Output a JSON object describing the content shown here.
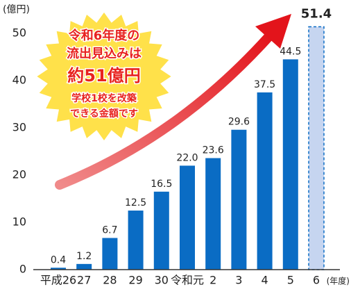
{
  "chart_data": {
    "type": "bar",
    "y_unit": "(億円)",
    "x_unit": "(年度)",
    "categories": [
      "平成26",
      "27",
      "28",
      "29",
      "30",
      "令和元",
      "2",
      "3",
      "4",
      "5",
      "6"
    ],
    "values": [
      0.4,
      1.2,
      6.7,
      12.5,
      16.5,
      22.0,
      23.6,
      29.6,
      37.5,
      44.5,
      51.4
    ],
    "value_labels": [
      "0.4",
      "1.2",
      "6.7",
      "12.5",
      "16.5",
      "22.0",
      "23.6",
      "29.6",
      "37.5",
      "44.5",
      "51.4"
    ],
    "colors": [
      "#0a6cc4",
      "#0a6cc4",
      "#0a6cc4",
      "#0a6cc4",
      "#0a6cc4",
      "#0a6cc4",
      "#0a6cc4",
      "#0a6cc4",
      "#0a6cc4",
      "#0a6cc4",
      "#c6d5f0"
    ],
    "dashed": [
      false,
      false,
      false,
      false,
      false,
      false,
      false,
      false,
      false,
      false,
      true
    ],
    "ylim": [
      0,
      50
    ],
    "yticks": [
      0,
      10,
      20,
      30,
      40,
      50
    ],
    "grid": false,
    "annotation": [
      "令和6年度の",
      "流出見込みは",
      "約51億円",
      "学校1校を改築",
      "できる金額です"
    ]
  }
}
